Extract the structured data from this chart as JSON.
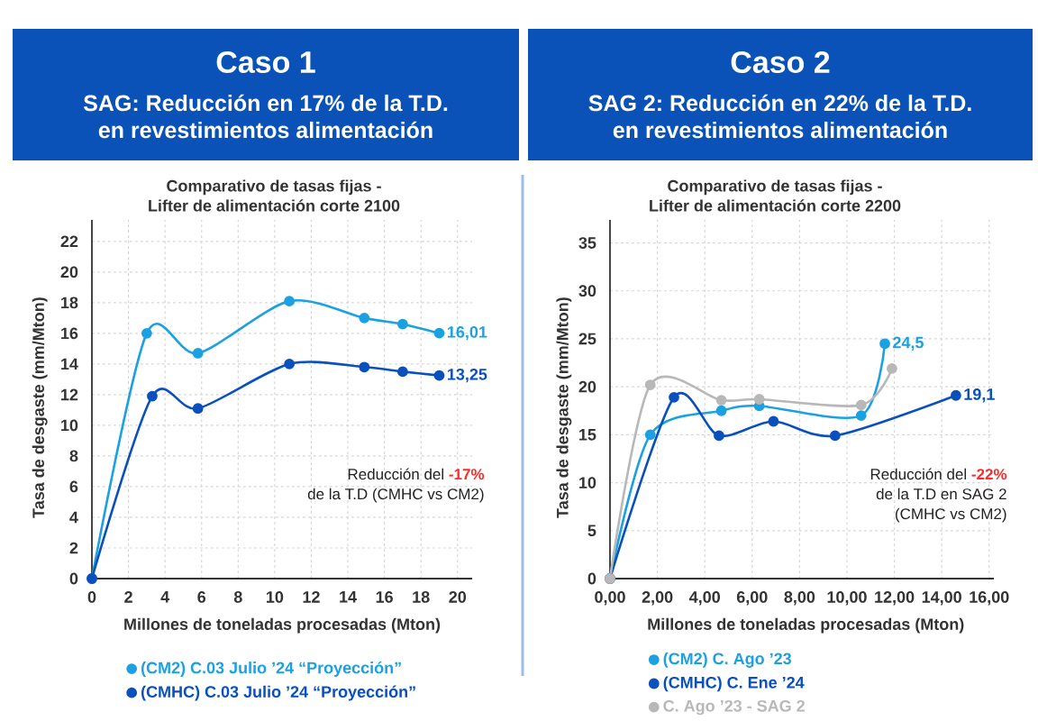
{
  "chart_data": [
    {
      "type": "line",
      "title": "Caso 1",
      "subtitle": "SAG: Reducción en 17% de la T.D. en revestimientos alimentación",
      "annotations": [
        "Comparativo de tasas fijas - Lifter de alimentación corte 2100",
        "Reducción del",
        "-17%",
        "de la T.D (CMHC vs CM2)"
      ],
      "xlabel": "Millones de toneladas procesadas (Mton)",
      "ylabel": "Tasa de desgaste (mm/Mton)",
      "xlim": [
        0,
        20.8
      ],
      "ylim": [
        0,
        23.4
      ],
      "xticks": [
        0,
        2,
        4,
        6,
        8,
        10,
        12,
        14,
        16,
        18,
        20
      ],
      "yticks": [
        0,
        2,
        4,
        6,
        8,
        10,
        12,
        14,
        16,
        18,
        20,
        22
      ],
      "grid": true,
      "legend": "bottom",
      "marker": "circle",
      "line_style": "solid",
      "series": [
        {
          "name": "(CM2) C.03 Julio ’24 “Proyección”",
          "color": "#1ba1e2",
          "x": [
            0,
            3.0,
            5.8,
            10.8,
            14.9,
            17.0,
            19.0
          ],
          "values": [
            0,
            16.0,
            14.7,
            18.1,
            17.0,
            16.6,
            16.01
          ],
          "value_labels": [
            null,
            null,
            null,
            null,
            null,
            null,
            "16,01"
          ]
        },
        {
          "name": "(CMHC) C.03 Julio ’24 “Proyección”",
          "color": "#0a50bd",
          "x": [
            0,
            3.3,
            5.8,
            10.8,
            14.9,
            17.0,
            19.0
          ],
          "values": [
            0,
            11.9,
            11.1,
            14.0,
            13.8,
            13.5,
            13.25
          ],
          "value_labels": [
            null,
            null,
            null,
            null,
            null,
            null,
            "13,25"
          ]
        }
      ]
    },
    {
      "type": "line",
      "title": "Caso 2",
      "subtitle": "SAG 2: Reducción en 22% de la T.D. en revestimientos alimentación",
      "annotations": [
        "Comparativo de tasas fijas - Lifter de alimentación corte 2200",
        "Reducción del",
        "-22%",
        "de la T.D en SAG 2",
        "(CMHC vs CM2)"
      ],
      "xlabel": "Millones de toneladas procesadas (Mton)",
      "ylabel": "Tasa de desgaste (mm/Mton)",
      "xlim": [
        0,
        16.2
      ],
      "ylim": [
        0,
        37.4
      ],
      "xticks": [
        {
          "value": 0,
          "label": "0,00"
        },
        {
          "value": 2,
          "label": "2,00"
        },
        {
          "value": 4,
          "label": "4,00"
        },
        {
          "value": 6,
          "label": "6,00"
        },
        {
          "value": 8,
          "label": "8,00"
        },
        {
          "value": 10,
          "label": "10,00"
        },
        {
          "value": 12,
          "label": "12,00"
        },
        {
          "value": 14,
          "label": "14,00"
        },
        {
          "value": 16,
          "label": "16,00"
        }
      ],
      "yticks": [
        0,
        5,
        10,
        15,
        20,
        25,
        30,
        35
      ],
      "grid": true,
      "legend": "bottom",
      "marker": "circle",
      "line_style": "solid",
      "series": [
        {
          "name": "(CM2) C. Ago ’23",
          "color": "#1ba1e2",
          "x": [
            0,
            1.7,
            4.7,
            6.3,
            10.6,
            11.6
          ],
          "values": [
            0,
            15.0,
            17.5,
            18.0,
            17.0,
            24.5
          ],
          "value_labels": [
            null,
            null,
            null,
            null,
            null,
            "24,5"
          ]
        },
        {
          "name": "(CMHC) C. Ene ’24",
          "color": "#0a50bd",
          "x": [
            0,
            2.7,
            4.6,
            6.9,
            9.5,
            14.6
          ],
          "values": [
            0,
            18.9,
            14.9,
            16.4,
            14.9,
            19.1
          ],
          "value_labels": [
            null,
            null,
            null,
            null,
            null,
            "19,1"
          ]
        },
        {
          "name": "C. Ago ’23 - SAG 2",
          "color": "#b8b8b8",
          "x": [
            0,
            1.7,
            4.7,
            6.3,
            10.6,
            11.9
          ],
          "values": [
            0,
            20.2,
            18.6,
            18.7,
            18.1,
            21.9
          ]
        }
      ]
    }
  ]
}
